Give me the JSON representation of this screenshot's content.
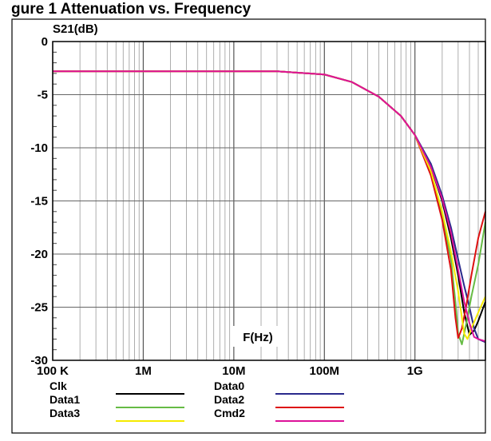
{
  "page_title": "gure 1 Attenuation vs. Frequency",
  "chart_data": {
    "type": "line",
    "title": "",
    "ylabel": "S21(dB)",
    "xlabel": "F(Hz)",
    "x_scale": "log",
    "xlim": [
      100000,
      6000000000
    ],
    "ylim": [
      -30,
      0
    ],
    "grid": true,
    "legend_position": "bottom",
    "x_ticks": [
      {
        "value": 100000,
        "label": "100 K"
      },
      {
        "value": 1000000,
        "label": "1M"
      },
      {
        "value": 10000000,
        "label": "10M"
      },
      {
        "value": 100000000,
        "label": "100M"
      },
      {
        "value": 1000000000,
        "label": "1G"
      }
    ],
    "y_ticks": [
      {
        "value": 0,
        "label": "0"
      },
      {
        "value": -5,
        "label": "-5"
      },
      {
        "value": -10,
        "label": "-10"
      },
      {
        "value": -15,
        "label": "-15"
      },
      {
        "value": -20,
        "label": "-20"
      },
      {
        "value": -25,
        "label": "-25"
      },
      {
        "value": -30,
        "label": "-30"
      }
    ],
    "series": [
      {
        "name": "Clk",
        "color": "#000000",
        "points": [
          [
            100000,
            -2.8
          ],
          [
            1000000,
            -2.8
          ],
          [
            10000000,
            -2.8
          ],
          [
            30000000,
            -2.8
          ],
          [
            100000000,
            -3.1
          ],
          [
            200000000,
            -3.8
          ],
          [
            400000000,
            -5.2
          ],
          [
            700000000,
            -7.0
          ],
          [
            1000000000,
            -8.8
          ],
          [
            1500000000,
            -11.8
          ],
          [
            2000000000,
            -15.0
          ],
          [
            2500000000,
            -18.5
          ],
          [
            3000000000,
            -22.0
          ],
          [
            3500000000,
            -25.5
          ],
          [
            4000000000,
            -27.6
          ],
          [
            4500000000,
            -27.2
          ],
          [
            5000000000,
            -26.3
          ],
          [
            6000000000,
            -24.5
          ]
        ]
      },
      {
        "name": "Data0",
        "color": "#2a2a8c",
        "points": [
          [
            100000,
            -2.8
          ],
          [
            1000000,
            -2.8
          ],
          [
            10000000,
            -2.8
          ],
          [
            30000000,
            -2.8
          ],
          [
            100000000,
            -3.1
          ],
          [
            200000000,
            -3.8
          ],
          [
            400000000,
            -5.2
          ],
          [
            700000000,
            -7.0
          ],
          [
            1000000000,
            -8.8
          ],
          [
            1500000000,
            -11.5
          ],
          [
            2000000000,
            -14.5
          ],
          [
            2500000000,
            -17.5
          ],
          [
            3000000000,
            -20.5
          ],
          [
            3500000000,
            -23.0
          ],
          [
            4000000000,
            -25.0
          ],
          [
            4500000000,
            -27.0
          ],
          [
            5000000000,
            -28.0
          ],
          [
            6000000000,
            -28.3
          ]
        ]
      },
      {
        "name": "Data1",
        "color": "#66bb44",
        "points": [
          [
            100000,
            -2.8
          ],
          [
            1000000,
            -2.8
          ],
          [
            10000000,
            -2.8
          ],
          [
            30000000,
            -2.8
          ],
          [
            100000000,
            -3.1
          ],
          [
            200000000,
            -3.8
          ],
          [
            400000000,
            -5.2
          ],
          [
            700000000,
            -7.0
          ],
          [
            1000000000,
            -8.8
          ],
          [
            1500000000,
            -12.5
          ],
          [
            2000000000,
            -16.5
          ],
          [
            2500000000,
            -20.5
          ],
          [
            2800000000,
            -24.5
          ],
          [
            3000000000,
            -27.5
          ],
          [
            3300000000,
            -28.5
          ],
          [
            3700000000,
            -26.5
          ],
          [
            4200000000,
            -24.0
          ],
          [
            5000000000,
            -21.0
          ],
          [
            6000000000,
            -17.0
          ]
        ]
      },
      {
        "name": "Data2",
        "color": "#dd1111",
        "points": [
          [
            100000,
            -2.8
          ],
          [
            1000000,
            -2.8
          ],
          [
            10000000,
            -2.8
          ],
          [
            30000000,
            -2.8
          ],
          [
            100000000,
            -3.1
          ],
          [
            200000000,
            -3.8
          ],
          [
            400000000,
            -5.2
          ],
          [
            700000000,
            -7.0
          ],
          [
            1000000000,
            -8.8
          ],
          [
            1500000000,
            -12.6
          ],
          [
            2000000000,
            -16.8
          ],
          [
            2500000000,
            -21.5
          ],
          [
            2800000000,
            -26.0
          ],
          [
            3000000000,
            -27.9
          ],
          [
            3300000000,
            -27.0
          ],
          [
            3700000000,
            -24.8
          ],
          [
            4200000000,
            -22.0
          ],
          [
            5000000000,
            -18.5
          ],
          [
            6000000000,
            -16.0
          ]
        ]
      },
      {
        "name": "Data3",
        "color": "#f5ea00",
        "points": [
          [
            100000,
            -2.8
          ],
          [
            1000000,
            -2.8
          ],
          [
            10000000,
            -2.8
          ],
          [
            30000000,
            -2.8
          ],
          [
            100000000,
            -3.1
          ],
          [
            200000000,
            -3.8
          ],
          [
            400000000,
            -5.2
          ],
          [
            700000000,
            -7.0
          ],
          [
            1000000000,
            -8.8
          ],
          [
            1500000000,
            -12.2
          ],
          [
            2000000000,
            -16.0
          ],
          [
            2500000000,
            -19.8
          ],
          [
            3000000000,
            -23.5
          ],
          [
            3500000000,
            -27.5
          ],
          [
            3800000000,
            -28.0
          ],
          [
            4200000000,
            -27.0
          ],
          [
            5000000000,
            -25.5
          ],
          [
            6000000000,
            -24.0
          ]
        ]
      },
      {
        "name": "Cmd2",
        "color": "#dd1199",
        "points": [
          [
            100000,
            -2.8
          ],
          [
            1000000,
            -2.8
          ],
          [
            10000000,
            -2.8
          ],
          [
            30000000,
            -2.8
          ],
          [
            100000000,
            -3.1
          ],
          [
            200000000,
            -3.8
          ],
          [
            400000000,
            -5.2
          ],
          [
            700000000,
            -7.0
          ],
          [
            1000000000,
            -8.8
          ],
          [
            1500000000,
            -11.8
          ],
          [
            2000000000,
            -14.8
          ],
          [
            2500000000,
            -18.0
          ],
          [
            3000000000,
            -21.5
          ],
          [
            3500000000,
            -24.5
          ],
          [
            4000000000,
            -26.5
          ],
          [
            4500000000,
            -27.8
          ],
          [
            5000000000,
            -28.0
          ],
          [
            6000000000,
            -28.2
          ]
        ]
      }
    ]
  }
}
